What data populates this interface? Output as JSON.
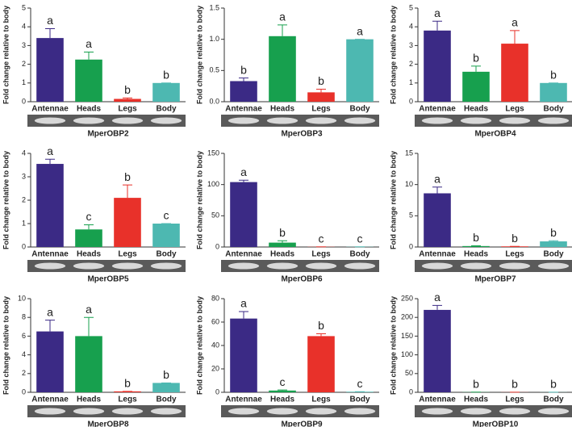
{
  "chart_data": [
    {
      "type": "bar",
      "title": "MperOBP2",
      "ylabel": "Fold change relative to body",
      "categories": [
        "Antennae",
        "Heads",
        "Legs",
        "Body"
      ],
      "values": [
        3.4,
        2.25,
        0.15,
        1.0
      ],
      "errors": [
        0.5,
        0.4,
        0.05,
        0
      ],
      "letters": [
        "a",
        "a",
        "b",
        "b"
      ],
      "colors": [
        "#3b2a85",
        "#17a04e",
        "#e8312a",
        "#4db8b1"
      ],
      "ylim": [
        0,
        5
      ],
      "yticks": [
        0,
        1,
        2,
        3,
        4,
        5
      ]
    },
    {
      "type": "bar",
      "title": "MperOBP3",
      "ylabel": "Fold change relative to body",
      "categories": [
        "Antennae",
        "Heads",
        "Legs",
        "Body"
      ],
      "values": [
        0.33,
        1.05,
        0.15,
        1.0
      ],
      "errors": [
        0.05,
        0.18,
        0.05,
        0
      ],
      "letters": [
        "b",
        "a",
        "b",
        "a"
      ],
      "colors": [
        "#3b2a85",
        "#17a04e",
        "#e8312a",
        "#4db8b1"
      ],
      "ylim": [
        0,
        1.5
      ],
      "yticks": [
        {
          "value": 0,
          "label": "0.0"
        },
        0.5,
        {
          "value": 1,
          "label": "1.0"
        },
        1.5
      ]
    },
    {
      "type": "bar",
      "title": "MperOBP4",
      "ylabel": "Fold change relative to body",
      "categories": [
        "Antennae",
        "Heads",
        "Legs",
        "Body"
      ],
      "values": [
        3.8,
        1.6,
        3.1,
        1.0
      ],
      "errors": [
        0.5,
        0.3,
        0.7,
        0
      ],
      "letters": [
        "a",
        "b",
        "a",
        "b"
      ],
      "colors": [
        "#3b2a85",
        "#17a04e",
        "#e8312a",
        "#4db8b1"
      ],
      "ylim": [
        0,
        5
      ],
      "yticks": [
        0,
        1,
        2,
        3,
        4,
        5
      ]
    },
    {
      "type": "bar",
      "title": "MperOBP5",
      "ylabel": "Fold change relative to body",
      "categories": [
        "Antennae",
        "Heads",
        "Legs",
        "Body"
      ],
      "values": [
        3.55,
        0.75,
        2.1,
        1.0
      ],
      "errors": [
        0.2,
        0.2,
        0.55,
        0
      ],
      "letters": [
        "a",
        "c",
        "b",
        "c"
      ],
      "colors": [
        "#3b2a85",
        "#17a04e",
        "#e8312a",
        "#4db8b1"
      ],
      "ylim": [
        0,
        4
      ],
      "yticks": [
        0,
        1,
        2,
        3,
        4
      ]
    },
    {
      "type": "bar",
      "title": "MperOBP6",
      "ylabel": "Fold change relative to body",
      "categories": [
        "Antennae",
        "Heads",
        "Legs",
        "Body"
      ],
      "values": [
        104,
        7,
        0.3,
        0.3
      ],
      "errors": [
        3,
        3,
        0,
        0
      ],
      "letters": [
        "a",
        "b",
        "c",
        "c"
      ],
      "colors": [
        "#3b2a85",
        "#17a04e",
        "#e8312a",
        "#4db8b1"
      ],
      "ylim": [
        0,
        150
      ],
      "yticks": [
        0,
        50,
        100,
        150
      ]
    },
    {
      "type": "bar",
      "title": "MperOBP7",
      "ylabel": "Fold change relative to body",
      "categories": [
        "Antennae",
        "Heads",
        "Legs",
        "Body"
      ],
      "values": [
        8.6,
        0.15,
        0.1,
        0.9
      ],
      "errors": [
        1,
        0.05,
        0,
        0.1
      ],
      "letters": [
        "a",
        "b",
        "b",
        "b"
      ],
      "colors": [
        "#3b2a85",
        "#17a04e",
        "#e8312a",
        "#4db8b1"
      ],
      "ylim": [
        0,
        15
      ],
      "yticks": [
        0,
        5,
        10,
        15
      ]
    },
    {
      "type": "bar",
      "title": "MperOBP8",
      "ylabel": "Fold change relative to body",
      "categories": [
        "Antennae",
        "Heads",
        "Legs",
        "Body"
      ],
      "values": [
        6.5,
        6.0,
        0.1,
        1.0
      ],
      "errors": [
        1.2,
        2,
        0,
        0
      ],
      "letters": [
        "a",
        "a",
        "b",
        "b"
      ],
      "colors": [
        "#3b2a85",
        "#17a04e",
        "#e8312a",
        "#4db8b1"
      ],
      "ylim": [
        0,
        10
      ],
      "yticks": [
        0,
        2,
        4,
        6,
        8,
        10
      ]
    },
    {
      "type": "bar",
      "title": "MperOBP9",
      "ylabel": "Fold change relative to body",
      "categories": [
        "Antennae",
        "Heads",
        "Legs",
        "Body"
      ],
      "values": [
        63,
        1.5,
        48,
        0.5
      ],
      "errors": [
        6,
        0.5,
        2,
        0
      ],
      "letters": [
        "a",
        "c",
        "b",
        "c"
      ],
      "colors": [
        "#3b2a85",
        "#17a04e",
        "#e8312a",
        "#4db8b1"
      ],
      "ylim": [
        0,
        80
      ],
      "yticks": [
        0,
        20,
        40,
        60,
        80
      ]
    },
    {
      "type": "bar",
      "title": "MperOBP10",
      "ylabel": "Fold change relative to body",
      "categories": [
        "Antennae",
        "Heads",
        "Legs",
        "Body"
      ],
      "values": [
        220,
        0.5,
        0.3,
        0.3
      ],
      "errors": [
        12,
        0,
        0,
        0
      ],
      "letters": [
        "a",
        "b",
        "b",
        "b"
      ],
      "colors": [
        "#3b2a85",
        "#17a04e",
        "#e8312a",
        "#4db8b1"
      ],
      "ylim": [
        0,
        250
      ],
      "yticks": [
        0,
        50,
        100,
        150,
        200,
        250
      ]
    }
  ]
}
